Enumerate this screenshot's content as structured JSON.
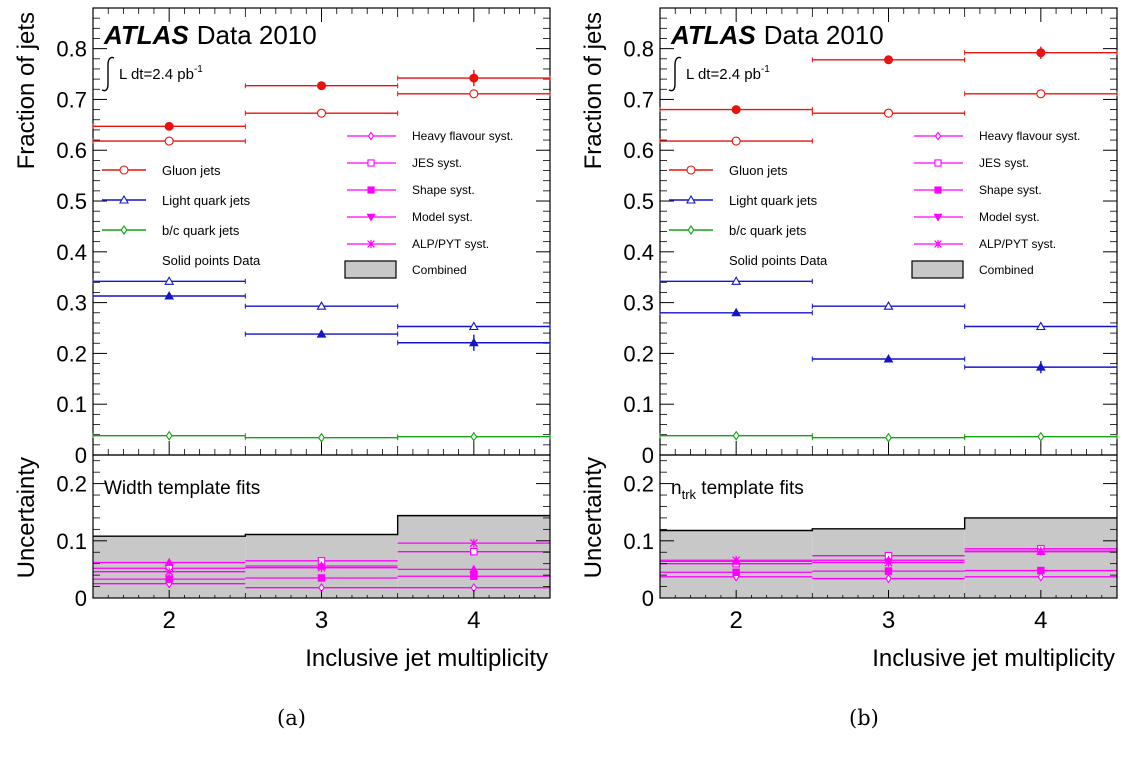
{
  "panels": [
    {
      "caption": "(a)",
      "atlas": "ATLAS",
      "data_label": "Data 2010",
      "lumi_prefix": "L dt=2.4 pb",
      "lumi_sup": "-1",
      "y_label_top": "Fraction of jets",
      "y_label_bottom": "Uncertainty",
      "x_label": "Inclusive jet multiplicity",
      "fit_label": "Width template fits",
      "fit_label_sub": "",
      "fit_label_rest": "",
      "legend_left": [
        "Gluon jets",
        "Light quark jets",
        "b/c quark jets",
        "Solid points Data"
      ],
      "legend_right": [
        "Heavy flavour syst.",
        "JES syst.",
        "Shape syst.",
        "Model syst.",
        "ALP/PYT syst.",
        "Combined"
      ]
    },
    {
      "caption": "(b)",
      "atlas": "ATLAS",
      "data_label": "Data 2010",
      "lumi_prefix": "L dt=2.4 pb",
      "lumi_sup": "-1",
      "y_label_top": "Fraction of jets",
      "y_label_bottom": "Uncertainty",
      "x_label": "Inclusive jet multiplicity",
      "fit_label": "n",
      "fit_label_sub": "trk",
      "fit_label_rest": " template fits",
      "legend_left": [
        "Gluon jets",
        "Light quark jets",
        "b/c quark jets",
        "Solid points Data"
      ],
      "legend_right": [
        "Heavy flavour syst.",
        "JES syst.",
        "Shape syst.",
        "Model syst.",
        "ALP/PYT syst.",
        "Combined"
      ]
    }
  ],
  "colors": {
    "gluon": "#e8130d",
    "light": "#1515c8",
    "bc": "#13a313",
    "syst": "#ff00ff",
    "band": "#c8c8c8"
  },
  "chart_data": [
    {
      "type": "scatter",
      "x": [
        2,
        3,
        4
      ],
      "xbins": [
        [
          1.5,
          2.5
        ],
        [
          2.5,
          3.5
        ],
        [
          3.5,
          4.5
        ]
      ],
      "xlim": [
        1.5,
        4.5
      ],
      "x_ticks": [
        "2",
        "3",
        "4"
      ],
      "xlabel": "Inclusive jet multiplicity",
      "top": {
        "ylabel": "Fraction of jets",
        "ylim": [
          0,
          0.88
        ],
        "y_ticks": [
          "0",
          "0.1",
          "0.2",
          "0.3",
          "0.4",
          "0.5",
          "0.6",
          "0.7",
          "0.8"
        ],
        "series": [
          {
            "name": "Gluon jets",
            "color": "gluon",
            "kind": "mc",
            "values": [
              0.618,
              0.673,
              0.711
            ]
          },
          {
            "name": "Light quark jets",
            "color": "light",
            "kind": "mc",
            "values": [
              0.342,
              0.293,
              0.253
            ]
          },
          {
            "name": "b/c quark jets",
            "color": "bc",
            "kind": "mc",
            "values": [
              0.038,
              0.034,
              0.036
            ]
          },
          {
            "name": "Gluon jets",
            "color": "gluon",
            "kind": "data",
            "values": [
              0.647,
              0.727,
              0.742
            ],
            "errors": [
              0.003,
              0.004,
              0.016
            ]
          },
          {
            "name": "Light quark jets",
            "color": "light",
            "kind": "data",
            "values": [
              0.313,
              0.238,
              0.221
            ],
            "errors": [
              0.003,
              0.004,
              0.016
            ]
          }
        ]
      },
      "bottom": {
        "ylabel": "Uncertainty",
        "ylim": [
          0,
          0.25
        ],
        "y_ticks": [
          "0",
          "0.1",
          "0.2"
        ],
        "combined": [
          0.108,
          0.111,
          0.144
        ],
        "systematics": [
          {
            "name": "Heavy flavour syst.",
            "marker": "open-diamond",
            "values": [
              0.025,
              0.018,
              0.018
            ]
          },
          {
            "name": "JES syst.",
            "marker": "open-square",
            "values": [
              0.052,
              0.065,
              0.081
            ]
          },
          {
            "name": "Shape syst.",
            "marker": "filled-square",
            "values": [
              0.033,
              0.035,
              0.038
            ]
          },
          {
            "name": "Model syst.",
            "marker": "filled-triangle",
            "values": [
              0.062,
              0.056,
              0.05
            ]
          },
          {
            "name": "ALP/PYT syst.",
            "marker": "star",
            "values": [
              0.046,
              0.053,
              0.096
            ]
          }
        ]
      }
    },
    {
      "type": "scatter",
      "x": [
        2,
        3,
        4
      ],
      "xbins": [
        [
          1.5,
          2.5
        ],
        [
          2.5,
          3.5
        ],
        [
          3.5,
          4.5
        ]
      ],
      "xlim": [
        1.5,
        4.5
      ],
      "x_ticks": [
        "2",
        "3",
        "4"
      ],
      "xlabel": "Inclusive jet multiplicity",
      "top": {
        "ylabel": "Fraction of jets",
        "ylim": [
          0,
          0.88
        ],
        "y_ticks": [
          "0",
          "0.1",
          "0.2",
          "0.3",
          "0.4",
          "0.5",
          "0.6",
          "0.7",
          "0.8"
        ],
        "series": [
          {
            "name": "Gluon jets",
            "color": "gluon",
            "kind": "mc",
            "values": [
              0.618,
              0.673,
              0.711
            ]
          },
          {
            "name": "Light quark jets",
            "color": "light",
            "kind": "mc",
            "values": [
              0.342,
              0.293,
              0.253
            ]
          },
          {
            "name": "b/c quark jets",
            "color": "bc",
            "kind": "mc",
            "values": [
              0.038,
              0.034,
              0.036
            ]
          },
          {
            "name": "Gluon jets",
            "color": "gluon",
            "kind": "data",
            "values": [
              0.68,
              0.778,
              0.792
            ],
            "errors": [
              0.003,
              0.004,
              0.012
            ]
          },
          {
            "name": "Light quark jets",
            "color": "light",
            "kind": "data",
            "values": [
              0.28,
              0.189,
              0.173
            ],
            "errors": [
              0.003,
              0.004,
              0.012
            ]
          }
        ]
      },
      "bottom": {
        "ylabel": "Uncertainty",
        "ylim": [
          0,
          0.25
        ],
        "y_ticks": [
          "0",
          "0.1",
          "0.2"
        ],
        "combined": [
          0.118,
          0.121,
          0.14
        ],
        "systematics": [
          {
            "name": "Heavy flavour syst.",
            "marker": "open-diamond",
            "values": [
              0.037,
              0.034,
              0.037
            ]
          },
          {
            "name": "JES syst.",
            "marker": "open-square",
            "values": [
              0.06,
              0.074,
              0.086
            ]
          },
          {
            "name": "Shape syst.",
            "marker": "filled-square",
            "values": [
              0.045,
              0.047,
              0.048
            ]
          },
          {
            "name": "Model syst.",
            "marker": "filled-triangle",
            "values": [
              0.064,
              0.066,
              0.081
            ]
          },
          {
            "name": "ALP/PYT syst.",
            "marker": "star",
            "values": [
              0.066,
              0.062,
              0.082
            ]
          }
        ]
      }
    }
  ]
}
